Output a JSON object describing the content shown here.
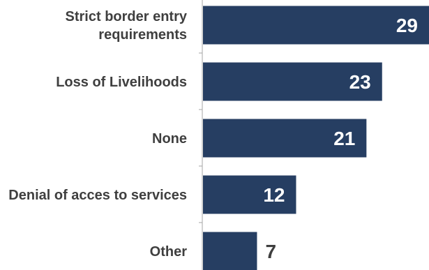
{
  "chart_data": {
    "type": "bar",
    "orientation": "horizontal",
    "categories": [
      "Strict border entry requirements",
      "Loss of Livelihoods",
      "None",
      "Denial of acces to services",
      "Other"
    ],
    "category_lines": [
      [
        "Strict border entry",
        "requirements"
      ],
      [
        "Loss of Livelihoods"
      ],
      [
        "None"
      ],
      [
        "Denial of acces to services"
      ],
      [
        "Other"
      ]
    ],
    "values": [
      29,
      23,
      21,
      12,
      7
    ],
    "xlim": [
      0,
      29
    ],
    "title": "",
    "xlabel": "",
    "ylabel": "",
    "grid": false,
    "legend": "none",
    "colors": {
      "bar": "#263e62",
      "label": "#3f3f3f",
      "value_inside": "#ffffff",
      "value_outside": "#3f3f3f",
      "axis": "#a6a6a6"
    }
  }
}
